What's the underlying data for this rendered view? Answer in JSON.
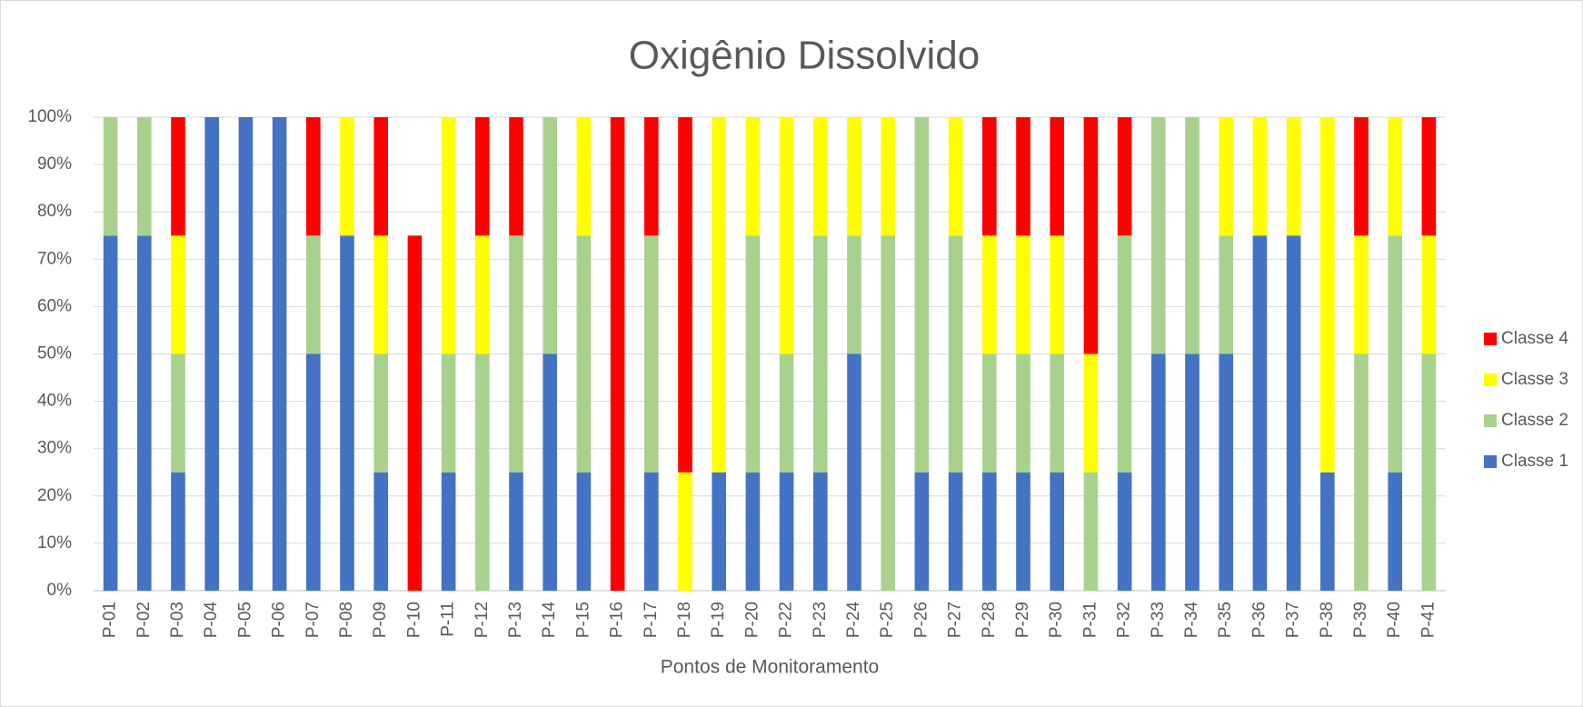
{
  "chart_data": {
    "type": "stacked_bar",
    "title": "Oxigênio Dissolvido",
    "x_label": "Pontos de Monitoramento",
    "categories": [
      "P-01",
      "P-02",
      "P-03",
      "P-04",
      "P-05",
      "P-06",
      "P-07",
      "P-08",
      "P-09",
      "P-10",
      "P-11",
      "P-12",
      "P-13",
      "P-14",
      "P-15",
      "P-16",
      "P-17",
      "P-18",
      "P-19",
      "P-20",
      "P-22",
      "P-23",
      "P-24",
      "P-25",
      "P-26",
      "P-27",
      "P-28",
      "P-29",
      "P-30",
      "P-31",
      "P-32",
      "P-33",
      "P-34",
      "P-35",
      "P-36",
      "P-37",
      "P-38",
      "P-39",
      "P-40",
      "P-41"
    ],
    "series": [
      {
        "name": "Classe 1",
        "color": "#4472c4",
        "values": [
          75,
          75,
          25,
          100,
          100,
          100,
          50,
          75,
          25,
          0,
          25,
          0,
          25,
          50,
          25,
          0,
          25,
          0,
          25,
          25,
          25,
          25,
          50,
          0,
          25,
          25,
          25,
          25,
          25,
          0,
          25,
          50,
          50,
          50,
          75,
          75,
          25,
          0,
          25,
          0
        ]
      },
      {
        "name": "Classe 2",
        "color": "#a9d18e",
        "values": [
          25,
          25,
          25,
          0,
          0,
          0,
          25,
          0,
          25,
          0,
          25,
          50,
          50,
          50,
          50,
          0,
          50,
          0,
          0,
          50,
          25,
          50,
          25,
          75,
          75,
          50,
          25,
          25,
          25,
          25,
          50,
          50,
          50,
          25,
          0,
          0,
          0,
          50,
          50,
          50
        ]
      },
      {
        "name": "Classe 3",
        "color": "#ffff00",
        "values": [
          0,
          0,
          25,
          0,
          0,
          0,
          0,
          25,
          25,
          0,
          50,
          25,
          0,
          0,
          25,
          0,
          0,
          25,
          75,
          25,
          50,
          25,
          25,
          25,
          0,
          25,
          25,
          25,
          25,
          25,
          0,
          0,
          0,
          25,
          25,
          25,
          75,
          25,
          25,
          25
        ]
      },
      {
        "name": "Classe 4",
        "color": "#ff0000",
        "values": [
          0,
          0,
          25,
          0,
          0,
          0,
          25,
          0,
          25,
          75,
          0,
          25,
          25,
          0,
          0,
          100,
          25,
          75,
          0,
          0,
          0,
          0,
          0,
          0,
          0,
          0,
          25,
          25,
          25,
          50,
          25,
          0,
          0,
          0,
          0,
          0,
          0,
          25,
          0,
          25
        ]
      }
    ],
    "ylim": [
      0,
      100
    ],
    "yticks": [
      {
        "value": 0,
        "label": "0%"
      },
      {
        "value": 10,
        "label": "10%"
      },
      {
        "value": 20,
        "label": "20%"
      },
      {
        "value": 30,
        "label": "30%"
      },
      {
        "value": 40,
        "label": "40%"
      },
      {
        "value": 50,
        "label": "50%"
      },
      {
        "value": 60,
        "label": "60%"
      },
      {
        "value": 70,
        "label": "70%"
      },
      {
        "value": 80,
        "label": "80%"
      },
      {
        "value": 90,
        "label": "90%"
      },
      {
        "value": 100,
        "label": "100%"
      }
    ],
    "grid": true,
    "legend": "right"
  }
}
